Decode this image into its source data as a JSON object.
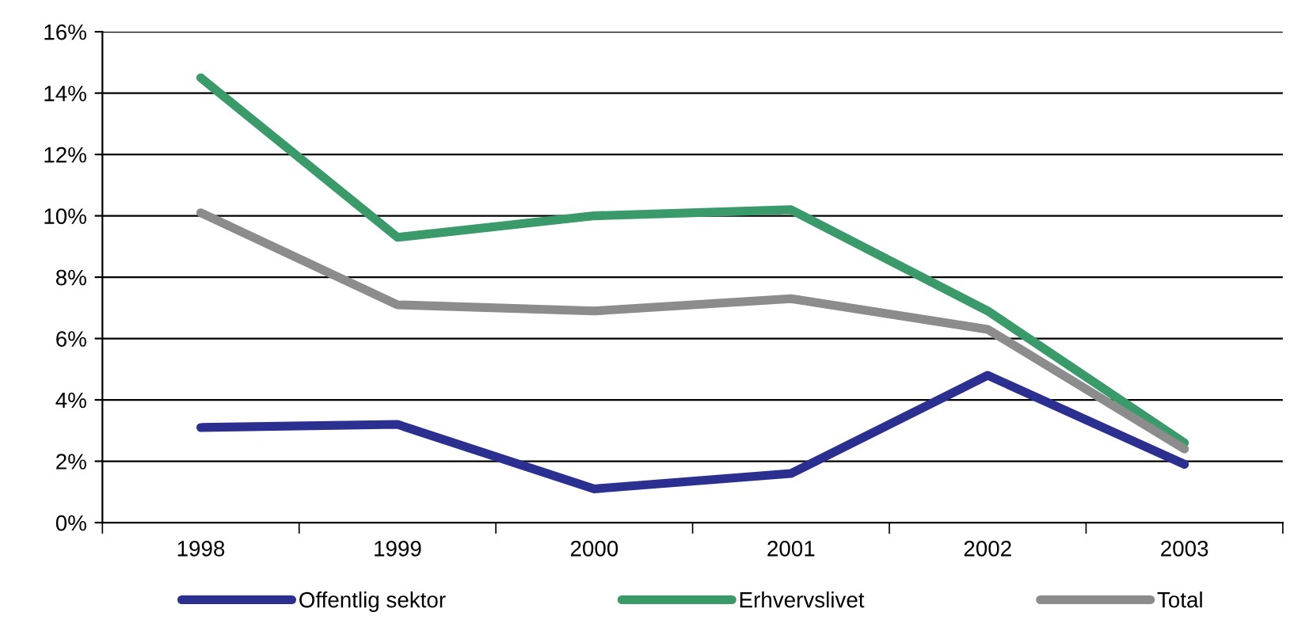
{
  "chart_data": {
    "type": "line",
    "categories": [
      "1998",
      "1999",
      "2000",
      "2001",
      "2002",
      "2003"
    ],
    "series": [
      {
        "name": "Offentlig sektor",
        "color": "#2b2f8f",
        "values": [
          3.1,
          3.2,
          1.1,
          1.6,
          4.8,
          1.9
        ]
      },
      {
        "name": "Erhvervslivet",
        "color": "#3a9a6a",
        "values": [
          14.5,
          9.3,
          10.0,
          10.2,
          6.9,
          2.6
        ]
      },
      {
        "name": "Total",
        "color": "#8c8c8c",
        "values": [
          10.1,
          7.1,
          6.9,
          7.3,
          6.3,
          2.4
        ]
      }
    ],
    "ylim": [
      0,
      16
    ],
    "yticks": [
      {
        "value": 0,
        "label": "0%"
      },
      {
        "value": 2,
        "label": "2%"
      },
      {
        "value": 4,
        "label": "4%"
      },
      {
        "value": 6,
        "label": "6%"
      },
      {
        "value": 8,
        "label": "8%"
      },
      {
        "value": 10,
        "label": "10%"
      },
      {
        "value": 12,
        "label": "12%"
      },
      {
        "value": 14,
        "label": "14%"
      },
      {
        "value": 16,
        "label": "16%"
      }
    ],
    "grid": "y",
    "legend": "bottom",
    "marker": "none",
    "line_style": "solid"
  }
}
